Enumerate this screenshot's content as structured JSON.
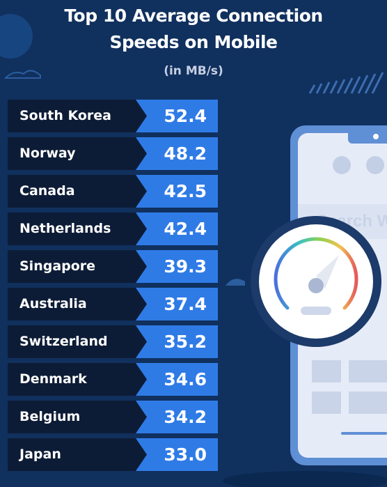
{
  "chart_data": {
    "type": "table",
    "title": "Top 10 Average Connection Speeds on Mobile",
    "title_lines": [
      "Top 10 Average Connection",
      "Speeds on Mobile"
    ],
    "subtitle": "(in MB/s)",
    "unit": "MB/s",
    "categories": [
      "South Korea",
      "Norway",
      "Canada",
      "Netherlands",
      "Singapore",
      "Australia",
      "Switzerland",
      "Denmark",
      "Belgium",
      "Japan"
    ],
    "values": [
      52.4,
      48.2,
      42.5,
      42.4,
      39.3,
      37.4,
      35.2,
      34.6,
      34.2,
      33.0
    ],
    "value_labels": [
      "52.4",
      "48.2",
      "42.5",
      "42.4",
      "39.3",
      "37.4",
      "35.2",
      "34.6",
      "34.2",
      "33.0"
    ]
  },
  "phone": {
    "search_text": "Search W"
  },
  "colors": {
    "background": "#10305e",
    "row_dark": "#0d1c36",
    "row_accent": "#2f7be6",
    "phone_body": "#5f8fd4",
    "phone_screen": "#e6ecf7"
  }
}
